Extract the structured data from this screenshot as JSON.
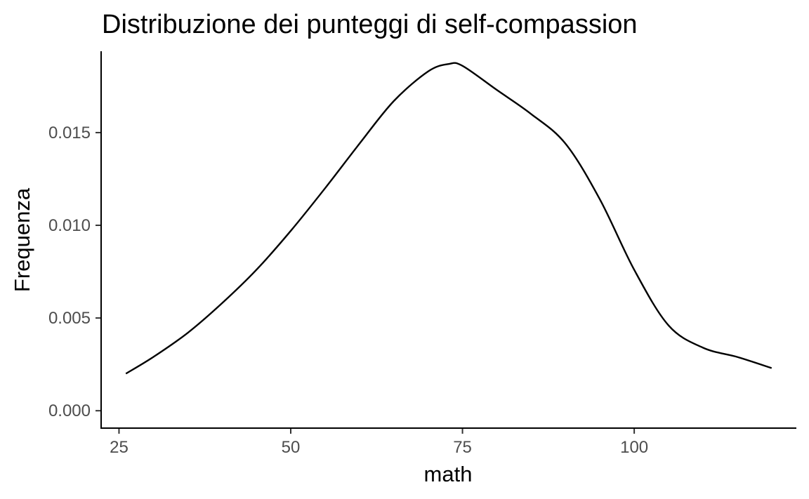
{
  "chart_data": {
    "type": "line",
    "title": "Distribuzione dei punteggi di self-compassion",
    "xlabel": "math",
    "ylabel": "Frequenza",
    "xlim": [
      22.5,
      123.5
    ],
    "ylim": [
      -0.0009,
      0.01935
    ],
    "x_ticks": [
      25,
      50,
      75,
      100
    ],
    "y_ticks": [
      0.0,
      0.005,
      0.01,
      0.015
    ],
    "x_tick_labels": [
      "25",
      "50",
      "75",
      "100"
    ],
    "y_tick_labels": [
      "0.000",
      "0.005",
      "0.010",
      "0.015"
    ],
    "grid": false,
    "series": [
      {
        "x": [
          26,
          30,
          35,
          40,
          45,
          50,
          55,
          60,
          65,
          70,
          73,
          75,
          80,
          85,
          90,
          95,
          100,
          105,
          110,
          115,
          120
        ],
        "y": [
          0.002,
          0.0029,
          0.0042,
          0.0058,
          0.0076,
          0.0097,
          0.012,
          0.0144,
          0.0167,
          0.0183,
          0.0187,
          0.0186,
          0.0173,
          0.016,
          0.0144,
          0.0114,
          0.0076,
          0.0046,
          0.0034,
          0.0029,
          0.0023
        ]
      }
    ]
  }
}
